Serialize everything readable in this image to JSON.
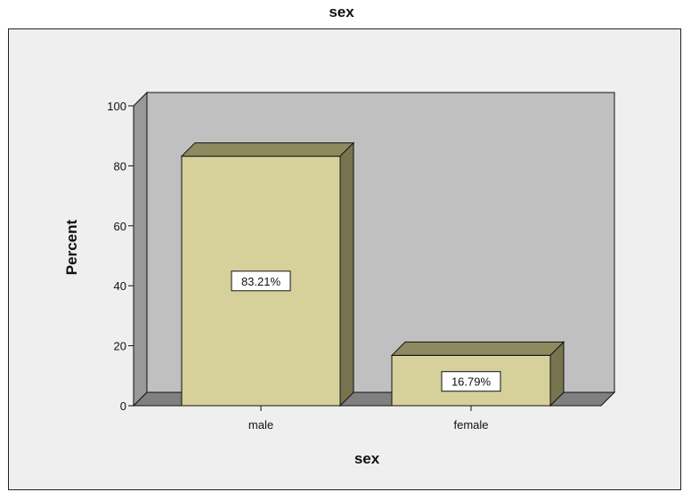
{
  "chart_data": {
    "type": "bar",
    "title": "sex",
    "categories": [
      "male",
      "female"
    ],
    "values": [
      83.21,
      16.79
    ],
    "data_labels": [
      "83.21%",
      "16.79%"
    ],
    "xlabel": "sex",
    "ylabel": "Percent",
    "ylim": [
      0,
      100
    ],
    "yticks": [
      0,
      20,
      40,
      60,
      80,
      100
    ],
    "grid": false,
    "legend": "none",
    "style": "3d",
    "colors": {
      "bar_front": "#d6d09b",
      "bar_top": "#8d8a5f",
      "bar_side": "#77744f",
      "back_wall": "#c0c0c0",
      "side_wall": "#999999",
      "floor": "#808080",
      "outer_background": "#efefef"
    }
  }
}
